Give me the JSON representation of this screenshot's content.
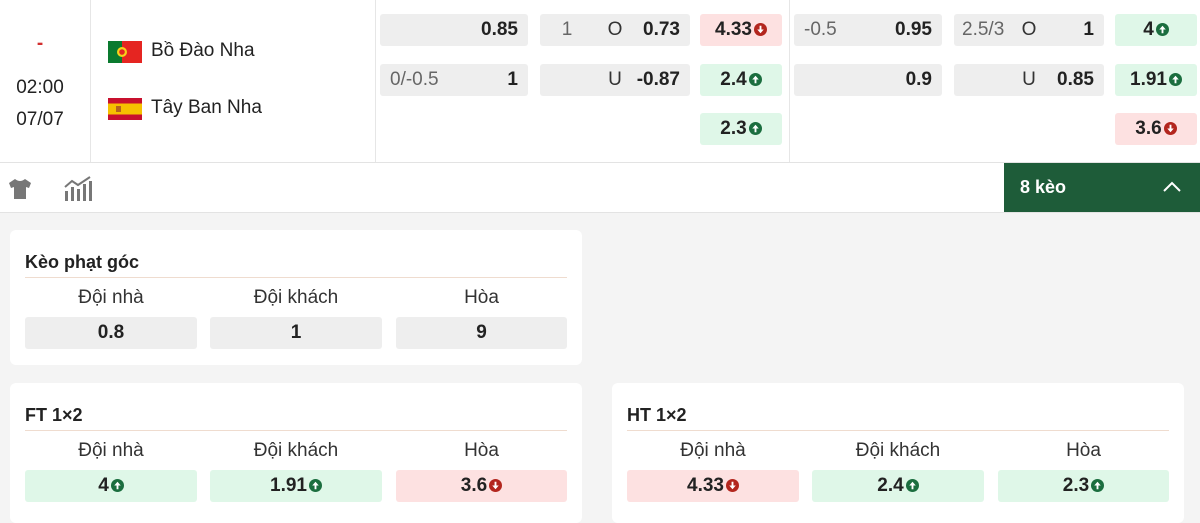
{
  "match": {
    "score": "-",
    "time": "02:00",
    "date": "07/07",
    "home": "Bồ Đào Nha",
    "away": "Tây Ban Nha"
  },
  "markets_left": {
    "handicap": [
      {
        "odds": 0.85
      },
      {
        "line": "0/-0.5",
        "odds": 1
      }
    ],
    "over_under": [
      {
        "line": 1,
        "side": "O",
        "odds": 0.73
      },
      {
        "side": "U",
        "odds": -0.87
      }
    ],
    "x12": [
      {
        "odds": 4.33,
        "trend": "down"
      },
      {
        "odds": 2.4,
        "trend": "up"
      },
      {
        "odds": 2.3,
        "trend": "up"
      }
    ]
  },
  "markets_right": {
    "handicap": [
      {
        "line": -0.5,
        "odds": 0.95
      },
      {
        "odds": 0.9
      }
    ],
    "over_under": [
      {
        "line": "2.5/3",
        "side": "O",
        "odds": 1
      },
      {
        "side": "U",
        "odds": 0.85
      }
    ],
    "x12": [
      {
        "odds": 4,
        "trend": "up"
      },
      {
        "odds": 1.91,
        "trend": "up"
      },
      {
        "odds": 3.6,
        "trend": "down"
      }
    ]
  },
  "toolbar": {
    "more_button": "8 kèo"
  },
  "cards": [
    {
      "title": "Kèo phạt góc",
      "columns": [
        "Đội nhà",
        "Đội khách",
        "Hòa"
      ],
      "cells": [
        {
          "odds": 0.8
        },
        {
          "odds": 1
        },
        {
          "odds": 9
        }
      ]
    },
    {
      "title": "FT 1×2",
      "columns": [
        "Đội nhà",
        "Đội khách",
        "Hòa"
      ],
      "cells": [
        {
          "odds": 4,
          "trend": "up"
        },
        {
          "odds": 1.91,
          "trend": "up"
        },
        {
          "odds": 3.6,
          "trend": "down"
        }
      ]
    },
    {
      "title": "HT 1×2",
      "columns": [
        "Đội nhà",
        "Đội khách",
        "Hòa"
      ],
      "cells": [
        {
          "odds": 4.33,
          "trend": "down"
        },
        {
          "odds": 2.4,
          "trend": "up"
        },
        {
          "odds": 2.3,
          "trend": "up"
        }
      ]
    }
  ]
}
